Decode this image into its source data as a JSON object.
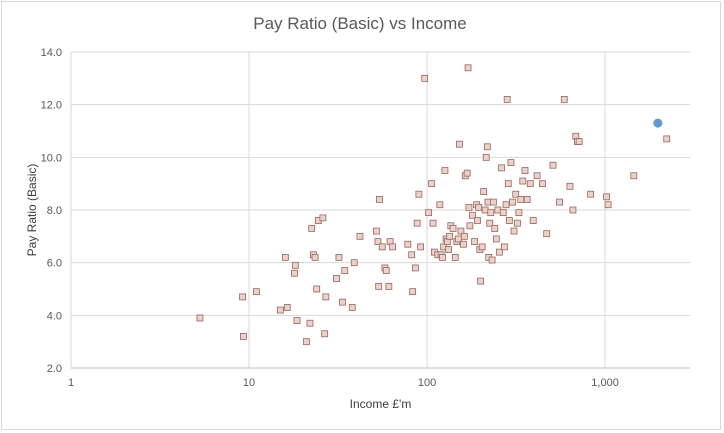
{
  "chart_data": {
    "type": "scatter",
    "title": "Pay Ratio (Basic) vs Income",
    "xlabel": "Income £'m",
    "ylabel": "Pay Ratio (Basic)",
    "x_scale": "log",
    "xlim": [
      1,
      3000
    ],
    "ylim": [
      2.0,
      14.0
    ],
    "x_ticks": [
      1,
      10,
      100,
      1000
    ],
    "x_tick_labels": [
      "1",
      "10",
      "100",
      "1,000"
    ],
    "y_ticks": [
      2,
      4,
      6,
      8,
      10,
      12,
      14
    ],
    "y_tick_labels": [
      "2.0",
      "4.0",
      "6.0",
      "8.0",
      "10.0",
      "12.0",
      "14.0"
    ],
    "grid": true,
    "colors": {
      "marker_fill": "#f2cfc4",
      "marker_edge": "#8c6b63",
      "highlight": "#5b9bd5",
      "grid": "#d9d9d9",
      "axis": "#bfbfbf"
    },
    "series": [
      {
        "marker": "square",
        "points": [
          [
            5.3,
            3.9
          ],
          [
            9.2,
            4.7
          ],
          [
            9.3,
            3.2
          ],
          [
            11,
            4.9
          ],
          [
            15,
            4.2
          ],
          [
            16,
            6.2
          ],
          [
            16.4,
            4.3
          ],
          [
            18,
            5.6
          ],
          [
            18.2,
            5.9
          ],
          [
            18.6,
            3.8
          ],
          [
            21,
            3.0
          ],
          [
            22,
            3.7
          ],
          [
            22.5,
            7.3
          ],
          [
            23,
            6.3
          ],
          [
            23.5,
            6.2
          ],
          [
            24,
            5.0
          ],
          [
            24.5,
            7.6
          ],
          [
            26,
            7.7
          ],
          [
            26.6,
            3.3
          ],
          [
            27,
            4.7
          ],
          [
            31,
            5.4
          ],
          [
            32,
            6.2
          ],
          [
            33.5,
            4.5
          ],
          [
            34.5,
            5.7
          ],
          [
            38,
            4.3
          ],
          [
            39,
            6.0
          ],
          [
            42,
            7.0
          ],
          [
            52,
            7.2
          ],
          [
            53,
            6.8
          ],
          [
            53.5,
            5.1
          ],
          [
            54,
            8.4
          ],
          [
            56,
            6.6
          ],
          [
            58,
            5.8
          ],
          [
            59,
            5.7
          ],
          [
            61,
            5.1
          ],
          [
            62,
            6.8
          ],
          [
            64,
            6.6
          ],
          [
            78,
            6.7
          ],
          [
            82,
            6.3
          ],
          [
            83,
            4.9
          ],
          [
            86,
            5.8
          ],
          [
            88,
            7.5
          ],
          [
            90,
            8.6
          ],
          [
            92,
            6.6
          ],
          [
            97,
            13.0
          ],
          [
            102,
            7.9
          ],
          [
            106,
            9.0
          ],
          [
            108,
            7.5
          ],
          [
            110,
            6.4
          ],
          [
            115,
            6.3
          ],
          [
            118,
            8.2
          ],
          [
            120,
            6.3
          ],
          [
            122,
            6.2
          ],
          [
            124,
            6.6
          ],
          [
            126,
            9.5
          ],
          [
            128,
            6.9
          ],
          [
            130,
            6.8
          ],
          [
            132,
            6.5
          ],
          [
            134,
            7.0
          ],
          [
            136,
            7.4
          ],
          [
            140,
            7.3
          ],
          [
            144,
            6.2
          ],
          [
            147,
            6.8
          ],
          [
            150,
            6.9
          ],
          [
            152,
            10.5
          ],
          [
            155,
            7.2
          ],
          [
            160,
            6.7
          ],
          [
            162,
            7.0
          ],
          [
            164,
            9.3
          ],
          [
            168,
            9.4
          ],
          [
            170,
            13.4
          ],
          [
            172,
            8.1
          ],
          [
            174,
            7.4
          ],
          [
            180,
            7.8
          ],
          [
            185,
            6.8
          ],
          [
            190,
            8.2
          ],
          [
            192,
            7.6
          ],
          [
            195,
            8.1
          ],
          [
            198,
            6.5
          ],
          [
            200,
            5.3
          ],
          [
            204,
            6.6
          ],
          [
            208,
            8.7
          ],
          [
            212,
            8.0
          ],
          [
            215,
            10.0
          ],
          [
            218,
            10.4
          ],
          [
            220,
            8.3
          ],
          [
            222,
            6.2
          ],
          [
            225,
            7.5
          ],
          [
            228,
            7.9
          ],
          [
            232,
            6.1
          ],
          [
            236,
            8.3
          ],
          [
            240,
            7.3
          ],
          [
            245,
            6.9
          ],
          [
            250,
            8.0
          ],
          [
            255,
            6.4
          ],
          [
            262,
            9.6
          ],
          [
            268,
            7.9
          ],
          [
            272,
            6.6
          ],
          [
            278,
            8.2
          ],
          [
            282,
            12.2
          ],
          [
            286,
            9.0
          ],
          [
            290,
            7.6
          ],
          [
            296,
            9.8
          ],
          [
            302,
            8.3
          ],
          [
            308,
            7.2
          ],
          [
            315,
            8.6
          ],
          [
            322,
            7.5
          ],
          [
            328,
            7.9
          ],
          [
            336,
            8.4
          ],
          [
            345,
            9.1
          ],
          [
            355,
            9.5
          ],
          [
            365,
            8.4
          ],
          [
            380,
            9.0
          ],
          [
            395,
            7.6
          ],
          [
            415,
            9.3
          ],
          [
            445,
            9.0
          ],
          [
            470,
            7.1
          ],
          [
            510,
            9.7
          ],
          [
            555,
            8.3
          ],
          [
            590,
            12.2
          ],
          [
            635,
            8.9
          ],
          [
            660,
            8.0
          ],
          [
            685,
            10.8
          ],
          [
            700,
            10.6
          ],
          [
            715,
            10.6
          ],
          [
            830,
            8.6
          ],
          [
            1020,
            8.5
          ],
          [
            1040,
            8.2
          ],
          [
            1450,
            9.3
          ],
          [
            2220,
            10.7
          ]
        ]
      },
      {
        "marker": "circle",
        "points": [
          [
            1980,
            11.3
          ]
        ]
      }
    ]
  }
}
